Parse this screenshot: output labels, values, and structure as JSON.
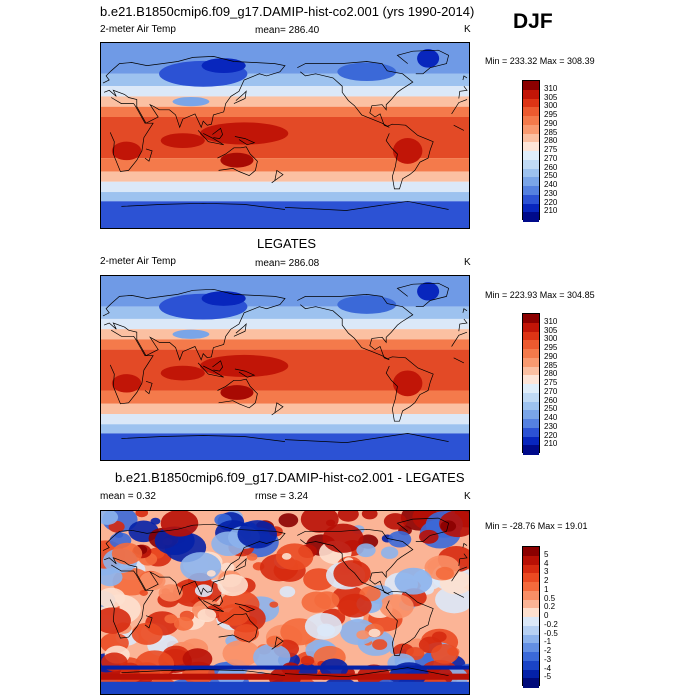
{
  "season": "DJF",
  "panels": [
    {
      "title": "b.e21.B1850cmip6.f09_g17.DAMIP-hist-co2.001 (yrs 1990-2014)",
      "left_label": "2-meter Air Temp",
      "center_label": "mean= 286.40",
      "right_label": "K",
      "minmax": "Min = 233.32 Max = 308.39",
      "kind": "abs",
      "colorbar_labels": [
        "310",
        "305",
        "300",
        "295",
        "290",
        "285",
        "280",
        "275",
        "270",
        "260",
        "250",
        "240",
        "230",
        "220",
        "210"
      ],
      "colorbar_colors": [
        "#8b0000",
        "#c11507",
        "#dd3415",
        "#ec5a2f",
        "#f47a4b",
        "#f99a70",
        "#fbc0a2",
        "#fde5d8",
        "#e0eefa",
        "#c0daf5",
        "#9dc2ef",
        "#7aa5e8",
        "#5581e0",
        "#2c52d4",
        "#0826bd",
        "#000a8a"
      ]
    },
    {
      "title": "LEGATES",
      "left_label": "2-meter Air Temp",
      "center_label": "mean= 286.08",
      "right_label": "K",
      "minmax": "Min = 223.93 Max = 304.85",
      "kind": "abs",
      "colorbar_labels": [
        "310",
        "305",
        "300",
        "295",
        "290",
        "285",
        "280",
        "275",
        "270",
        "260",
        "250",
        "240",
        "230",
        "220",
        "210"
      ],
      "colorbar_colors": [
        "#8b0000",
        "#c11507",
        "#dd3415",
        "#ec5a2f",
        "#f47a4b",
        "#f99a70",
        "#fbc0a2",
        "#fde5d8",
        "#e0eefa",
        "#c0daf5",
        "#9dc2ef",
        "#7aa5e8",
        "#5581e0",
        "#2c52d4",
        "#0826bd",
        "#000a8a"
      ]
    },
    {
      "title": "b.e21.B1850cmip6.f09_g17.DAMIP-hist-co2.001 - LEGATES",
      "left_label": "mean =   0.32",
      "center_label": "rmse =   3.24",
      "right_label": "K",
      "minmax": "Min = -28.76 Max =  19.01",
      "kind": "diff",
      "colorbar_labels": [
        "5",
        "4",
        "3",
        "2",
        "1",
        "0.5",
        "0.2",
        "0",
        "-0.2",
        "-0.5",
        "-1",
        "-2",
        "-3",
        "-4",
        "-5"
      ],
      "colorbar_colors": [
        "#8b0000",
        "#b81005",
        "#d62a10",
        "#ea4a22",
        "#f46a3c",
        "#f98f66",
        "#fbb496",
        "#fde0cf",
        "#dbe8f8",
        "#b6d0f3",
        "#8cb2ec",
        "#638fe3",
        "#3b69d8",
        "#1a44c6",
        "#0421a8",
        "#000a7a"
      ]
    }
  ]
}
